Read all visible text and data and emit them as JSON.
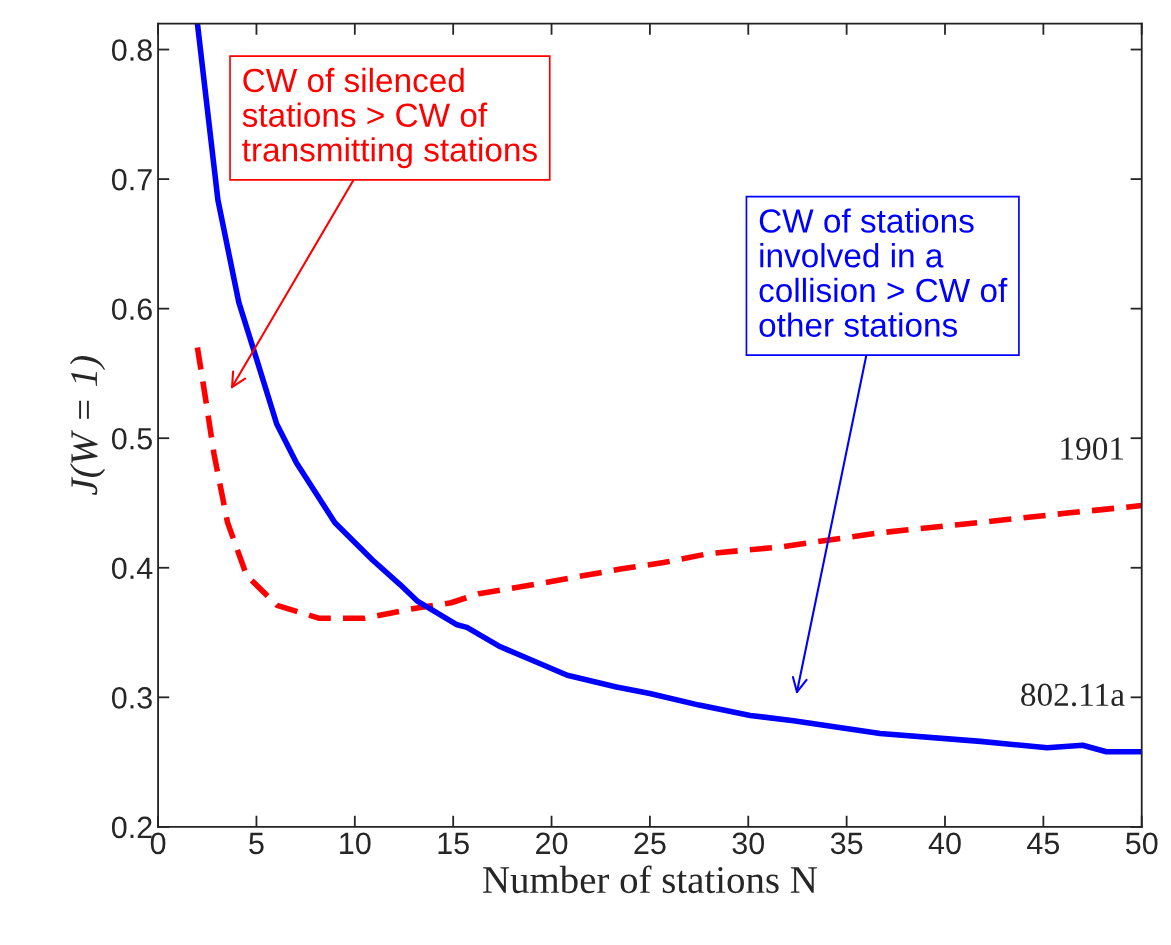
{
  "chart_data": {
    "type": "line",
    "xlabel": "Number of stations N",
    "ylabel": "J(W = 1)",
    "xlim": [
      0,
      50
    ],
    "ylim": [
      0.2,
      0.82
    ],
    "xticks": [
      0,
      5,
      10,
      15,
      20,
      25,
      30,
      35,
      40,
      45,
      50
    ],
    "yticks": [
      0.2,
      0.3,
      0.4,
      0.5,
      0.6,
      0.7,
      0.8
    ],
    "grid": false,
    "legend": false,
    "series": [
      {
        "name": "1901",
        "color": "#ff0000",
        "line_style": "dashed",
        "x": [
          2,
          2.46,
          2.84,
          3.53,
          4.5,
          6.05,
          8.2,
          10.5,
          12.8,
          14.9,
          16.3,
          19.1,
          23.5,
          25.7,
          28.0,
          31.6,
          36.7,
          41.8,
          46.1,
          50
        ],
        "values": [
          0.57,
          0.526,
          0.488,
          0.435,
          0.394,
          0.371,
          0.361,
          0.361,
          0.368,
          0.373,
          0.38,
          0.387,
          0.399,
          0.404,
          0.411,
          0.416,
          0.427,
          0.435,
          0.442,
          0.448
        ]
      },
      {
        "name": "802.11a",
        "color": "#0000ff",
        "line_style": "solid",
        "x": [
          2,
          3.04,
          4.1,
          5.07,
          6.03,
          7.03,
          8.98,
          10.9,
          12.3,
          13.2,
          15.2,
          15.7,
          17.4,
          19.1,
          20.8,
          23.3,
          25,
          27.5,
          30.1,
          32.3,
          36.7,
          41.8,
          45.2,
          47,
          48.2,
          50
        ],
        "values": [
          0.82,
          0.684,
          0.605,
          0.558,
          0.511,
          0.481,
          0.435,
          0.406,
          0.387,
          0.374,
          0.356,
          0.354,
          0.339,
          0.328,
          0.317,
          0.308,
          0.303,
          0.294,
          0.286,
          0.282,
          0.272,
          0.266,
          0.261,
          0.263,
          0.258,
          0.258
        ]
      }
    ],
    "annotations": [
      "CW of silenced\nstations > CW of\ntransmitting stations",
      "CW of stations\ninvolved in a\ncollision > CW of\nother stations"
    ]
  }
}
